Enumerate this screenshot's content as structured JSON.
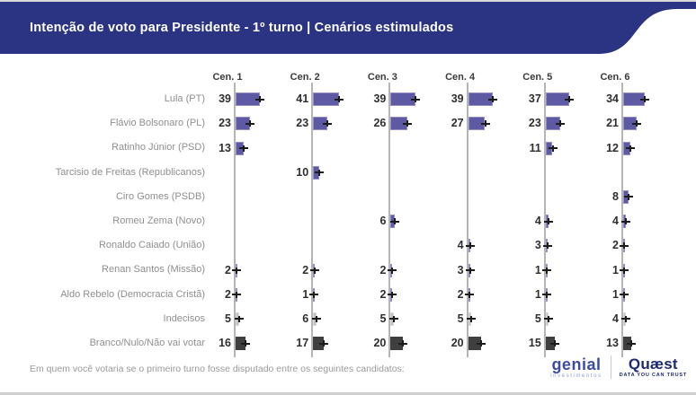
{
  "header": {
    "title": "Intenção de voto para Presidente - 1º turno | Cenários estimulados",
    "bg_color": "#2b3482"
  },
  "chart_data": {
    "type": "bar",
    "orientation": "horizontal",
    "unit": "%",
    "scenario_headers": [
      "Cen. 1",
      "Cen. 2",
      "Cen. 3",
      "Cen. 4",
      "Cen. 5",
      "Cen. 6"
    ],
    "categories": [
      "Lula (PT)",
      "Flávio Bolsonaro (PL)",
      "Ratinho Júnior (PSD)",
      "Tarcisio de Freitas (Republicanos)",
      "Ciro Gomes (PSDB)",
      "Romeu Zema (Novo)",
      "Ronaldo Caiado (União)",
      "Renan Santos (Missão)",
      "Aldo Rebelo (Democracia Cristã)",
      "Indecisos",
      "Branco/Nulo/Não vai votar"
    ],
    "series": [
      {
        "name": "Lula (PT)",
        "style": "candidate",
        "values": [
          39,
          41,
          39,
          39,
          37,
          34
        ]
      },
      {
        "name": "Flávio Bolsonaro (PL)",
        "style": "candidate",
        "values": [
          23,
          23,
          26,
          27,
          23,
          21
        ]
      },
      {
        "name": "Ratinho Júnior (PSD)",
        "style": "candidate",
        "values": [
          13,
          null,
          null,
          null,
          11,
          12
        ]
      },
      {
        "name": "Tarcisio de Freitas (Republicanos)",
        "style": "candidate",
        "values": [
          null,
          10,
          null,
          null,
          null,
          null
        ]
      },
      {
        "name": "Ciro Gomes (PSDB)",
        "style": "candidate",
        "values": [
          null,
          null,
          null,
          null,
          null,
          8
        ]
      },
      {
        "name": "Romeu Zema (Novo)",
        "style": "candidate",
        "values": [
          null,
          null,
          6,
          null,
          4,
          4
        ]
      },
      {
        "name": "Ronaldo Caiado (União)",
        "style": "candidate",
        "values": [
          null,
          null,
          null,
          4,
          3,
          2
        ]
      },
      {
        "name": "Renan Santos (Missão)",
        "style": "candidate",
        "values": [
          2,
          2,
          2,
          3,
          1,
          1
        ]
      },
      {
        "name": "Aldo Rebelo (Democracia Cristã)",
        "style": "candidate",
        "values": [
          2,
          1,
          2,
          2,
          1,
          1
        ]
      },
      {
        "name": "Indecisos",
        "style": "undecided",
        "values": [
          5,
          6,
          5,
          5,
          5,
          4
        ]
      },
      {
        "name": "Branco/Nulo/Não vai votar",
        "style": "blank",
        "values": [
          16,
          17,
          20,
          20,
          15,
          13
        ]
      }
    ],
    "bar_colors": {
      "candidate": {
        "fill": "#5d59a2",
        "border": "#9390c9"
      },
      "undecided": {
        "fill": "#c2c2c2",
        "border": "#d9d9d9"
      },
      "blank": {
        "fill": "#3f3f3f",
        "border": "#3f3f3f"
      }
    },
    "error_bars": true,
    "axis_color": "#b5b5b5",
    "legend_position": "none",
    "grid": "off"
  },
  "footer": {
    "question": "Em quem você votaria se o primeiro turno fosse disputado entre os seguintes candidatos:"
  },
  "logos": {
    "genial": {
      "word": "genial",
      "sub": "investimentos"
    },
    "quaest": {
      "word": "Quæst",
      "sub": "DATA YOU CAN TRUST"
    }
  }
}
